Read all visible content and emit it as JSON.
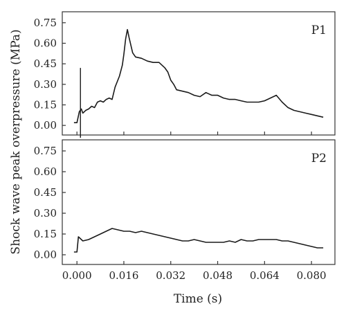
{
  "chart_data": {
    "type": "line",
    "xlabel": "Time (s)",
    "ylabel": "Shock wave peak overpressure (MPa)",
    "xlim": [
      -0.005,
      0.088
    ],
    "ylim": [
      -0.07,
      0.83
    ],
    "x_ticks": [
      "0.000",
      "0.016",
      "0.032",
      "0.048",
      "0.064",
      "0.080"
    ],
    "x_tick_values": [
      0.0,
      0.016,
      0.032,
      0.048,
      0.064,
      0.08
    ],
    "y_ticks": [
      "0.00",
      "0.15",
      "0.30",
      "0.45",
      "0.60",
      "0.75"
    ],
    "y_tick_values": [
      0.0,
      0.15,
      0.3,
      0.45,
      0.6,
      0.75
    ],
    "panels": [
      {
        "label": "P1",
        "spikes": [
          [
            0.0012,
            0.42,
            -0.09
          ]
        ],
        "x": [
          -0.001,
          0.0,
          0.0008,
          0.0015,
          0.002,
          0.003,
          0.004,
          0.005,
          0.006,
          0.007,
          0.008,
          0.009,
          0.01,
          0.011,
          0.012,
          0.013,
          0.0145,
          0.0155,
          0.016,
          0.0166,
          0.0172,
          0.0178,
          0.019,
          0.02,
          0.022,
          0.024,
          0.026,
          0.028,
          0.03,
          0.031,
          0.032,
          0.033,
          0.034,
          0.036,
          0.038,
          0.04,
          0.042,
          0.044,
          0.046,
          0.048,
          0.05,
          0.052,
          0.054,
          0.056,
          0.058,
          0.06,
          0.062,
          0.064,
          0.066,
          0.068,
          0.07,
          0.072,
          0.074,
          0.076,
          0.078,
          0.08,
          0.082,
          0.084
        ],
        "y": [
          0.02,
          0.02,
          0.1,
          0.12,
          0.09,
          0.11,
          0.12,
          0.14,
          0.13,
          0.17,
          0.18,
          0.17,
          0.19,
          0.2,
          0.19,
          0.28,
          0.36,
          0.44,
          0.52,
          0.63,
          0.7,
          0.64,
          0.53,
          0.5,
          0.49,
          0.47,
          0.46,
          0.46,
          0.42,
          0.39,
          0.33,
          0.3,
          0.26,
          0.25,
          0.24,
          0.22,
          0.21,
          0.24,
          0.22,
          0.22,
          0.2,
          0.19,
          0.19,
          0.18,
          0.17,
          0.17,
          0.17,
          0.18,
          0.2,
          0.22,
          0.17,
          0.13,
          0.11,
          0.1,
          0.09,
          0.08,
          0.07,
          0.06
        ]
      },
      {
        "label": "P2",
        "spikes": [],
        "x": [
          -0.001,
          0.0,
          0.0005,
          0.002,
          0.004,
          0.006,
          0.008,
          0.01,
          0.012,
          0.014,
          0.016,
          0.018,
          0.02,
          0.022,
          0.024,
          0.026,
          0.028,
          0.03,
          0.032,
          0.034,
          0.036,
          0.038,
          0.04,
          0.042,
          0.044,
          0.046,
          0.048,
          0.05,
          0.052,
          0.054,
          0.056,
          0.058,
          0.06,
          0.062,
          0.064,
          0.066,
          0.068,
          0.07,
          0.072,
          0.074,
          0.076,
          0.078,
          0.08,
          0.082,
          0.084
        ],
        "y": [
          0.02,
          0.02,
          0.13,
          0.1,
          0.11,
          0.13,
          0.15,
          0.17,
          0.19,
          0.18,
          0.17,
          0.17,
          0.16,
          0.17,
          0.16,
          0.15,
          0.14,
          0.13,
          0.12,
          0.11,
          0.1,
          0.1,
          0.11,
          0.1,
          0.09,
          0.09,
          0.09,
          0.09,
          0.1,
          0.09,
          0.11,
          0.1,
          0.1,
          0.11,
          0.11,
          0.11,
          0.11,
          0.1,
          0.1,
          0.09,
          0.08,
          0.07,
          0.06,
          0.05,
          0.05
        ]
      }
    ]
  }
}
